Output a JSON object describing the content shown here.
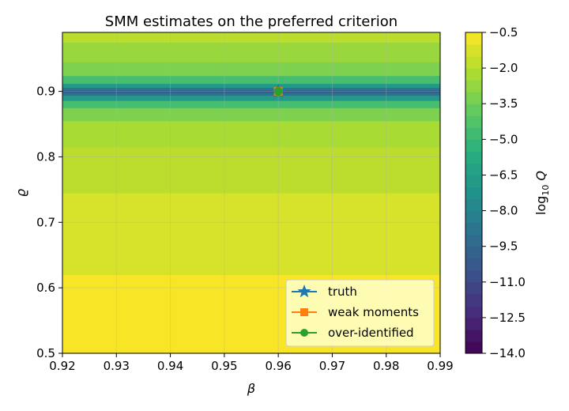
{
  "chart_data": {
    "type": "heatmap",
    "title": "SMM estimates on the preferred criterion",
    "xlabel": "β",
    "ylabel": "ϱ",
    "xlim": [
      0.92,
      0.99
    ],
    "ylim": [
      0.5,
      0.99
    ],
    "x_ticks": [
      "0.92",
      "0.93",
      "0.94",
      "0.95",
      "0.96",
      "0.97",
      "0.98",
      "0.99"
    ],
    "y_ticks": [
      "0.5",
      "0.6",
      "0.7",
      "0.8",
      "0.9"
    ],
    "grid": true,
    "colorbar": {
      "label": "log10 Q",
      "range": [
        -14.0,
        -0.5
      ],
      "ticks": [
        "−0.5",
        "−2.0",
        "−3.5",
        "−5.0",
        "−6.5",
        "−8.0",
        "−9.5",
        "−11.0",
        "−12.5",
        "−14.0"
      ],
      "colormap": "viridis"
    },
    "bands": [
      {
        "y0": 0.5,
        "y1": 0.62,
        "value": -0.6
      },
      {
        "y0": 0.62,
        "y1": 0.745,
        "value": -1.3
      },
      {
        "y0": 0.745,
        "y1": 0.815,
        "value": -1.9
      },
      {
        "y0": 0.815,
        "y1": 0.855,
        "value": -2.3
      },
      {
        "y0": 0.855,
        "y1": 0.875,
        "value": -3.2
      },
      {
        "y0": 0.875,
        "y1": 0.886,
        "value": -4.6
      },
      {
        "y0": 0.886,
        "y1": 0.894,
        "value": -6.8
      },
      {
        "y0": 0.894,
        "y1": 0.898,
        "value": -8.9
      },
      {
        "y0": 0.898,
        "y1": 0.902,
        "value": -10.2
      },
      {
        "y0": 0.902,
        "y1": 0.906,
        "value": -8.9
      },
      {
        "y0": 0.906,
        "y1": 0.912,
        "value": -6.8
      },
      {
        "y0": 0.912,
        "y1": 0.924,
        "value": -4.6
      },
      {
        "y0": 0.924,
        "y1": 0.945,
        "value": -3.2
      },
      {
        "y0": 0.945,
        "y1": 0.975,
        "value": -2.6
      },
      {
        "y0": 0.975,
        "y1": 0.99,
        "value": -1.9
      }
    ],
    "series": [
      {
        "name": "truth",
        "x": [
          0.96
        ],
        "y": [
          0.9
        ],
        "marker": "star",
        "color": "#1f77b4"
      },
      {
        "name": "weak moments",
        "x": [
          0.96
        ],
        "y": [
          0.9
        ],
        "marker": "square",
        "color": "#ff7f0e"
      },
      {
        "name": "over-identified",
        "x": [
          0.96
        ],
        "y": [
          0.9
        ],
        "marker": "circle",
        "color": "#2ca02c"
      }
    ],
    "legend": "bottom-right"
  }
}
